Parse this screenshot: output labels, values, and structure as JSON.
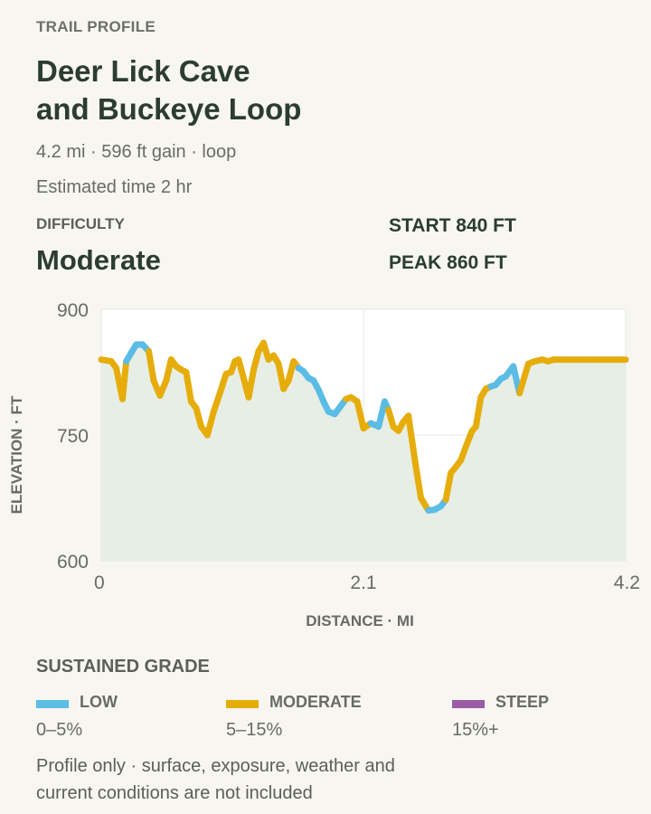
{
  "header": {
    "eyebrow": "TRAIL PROFILE",
    "title_line1": "Deer Lick Cave",
    "title_line2": "and Buckeye Loop",
    "meta": "4.2 mi · 596 ft gain · loop",
    "estimated_time": "Estimated time 2 hr"
  },
  "difficulty": {
    "label": "DIFFICULTY",
    "value": "Moderate"
  },
  "stats": {
    "start": "START 840 FT",
    "peak": "PEAK 860 FT"
  },
  "colors": {
    "low": "#5bbce6",
    "moderate": "#e6ad0a",
    "steep": "#9c5ba6",
    "area_fill": "#e7eee5",
    "plot_bg": "#ffffff",
    "grid": "#e6e6e2"
  },
  "chart_data": {
    "type": "area",
    "xlabel": "DISTANCE · MI",
    "ylabel": "ELEVATION · FT",
    "xlim": [
      0,
      4.2
    ],
    "ylim": [
      600,
      900
    ],
    "x_ticks": [
      0,
      2.1,
      4.2
    ],
    "x_tick_labels": [
      "0",
      "2.1",
      "4.2"
    ],
    "y_ticks": [
      600,
      750,
      900
    ],
    "y_tick_labels": [
      "600",
      "750",
      "900"
    ],
    "grid": true,
    "series": [
      {
        "x": [
          0,
          0.08,
          0.12,
          0.17,
          0.2,
          0.24,
          0.28,
          0.33,
          0.38,
          0.42,
          0.47,
          0.52,
          0.56,
          0.6,
          0.64,
          0.68,
          0.72,
          0.76,
          0.8,
          0.85,
          0.9,
          0.95,
          1.0,
          1.04,
          1.07,
          1.1,
          1.14,
          1.18,
          1.22,
          1.26,
          1.3,
          1.34,
          1.38,
          1.42,
          1.46,
          1.5,
          1.54,
          1.58,
          1.62,
          1.66,
          1.7,
          1.74,
          1.78,
          1.82,
          1.87,
          1.92,
          1.96,
          2.0,
          2.05,
          2.1,
          2.16,
          2.22,
          2.27,
          2.3,
          2.34,
          2.38,
          2.42,
          2.46,
          2.52,
          2.56,
          2.62,
          2.67,
          2.72,
          2.76,
          2.8,
          2.84,
          2.88,
          2.93,
          2.97,
          3.0,
          3.04,
          3.08,
          3.12,
          3.16,
          3.2,
          3.24,
          3.3,
          3.35,
          3.42,
          3.47,
          3.53,
          3.58,
          3.62,
          3.68,
          3.75,
          3.82,
          3.88,
          3.92,
          3.96,
          4.0,
          4.05,
          4.1,
          4.15,
          4.2
        ],
        "y": [
          840,
          838,
          830,
          793,
          838,
          848,
          858,
          858,
          850,
          815,
          797,
          815,
          840,
          832,
          828,
          825,
          790,
          782,
          760,
          750,
          778,
          800,
          823,
          825,
          838,
          840,
          818,
          795,
          828,
          850,
          860,
          840,
          845,
          835,
          805,
          815,
          838,
          830,
          826,
          818,
          815,
          804,
          790,
          778,
          775,
          785,
          793,
          795,
          790,
          758,
          764,
          760,
          790,
          780,
          760,
          755,
          766,
          773,
          712,
          675,
          660,
          661,
          665,
          673,
          705,
          712,
          720,
          740,
          755,
          760,
          795,
          805,
          808,
          810,
          817,
          820,
          832,
          800,
          835,
          838,
          840,
          838,
          840,
          840,
          840,
          840,
          840,
          840,
          840,
          840,
          840,
          840,
          840,
          840
        ],
        "grade": [
          "moderate",
          "moderate",
          "moderate",
          "moderate",
          "low",
          "low",
          "low",
          "low",
          "moderate",
          "moderate",
          "moderate",
          "moderate",
          "moderate",
          "moderate",
          "moderate",
          "moderate",
          "moderate",
          "moderate",
          "moderate",
          "moderate",
          "moderate",
          "moderate",
          "moderate",
          "moderate",
          "moderate",
          "moderate",
          "moderate",
          "moderate",
          "moderate",
          "moderate",
          "moderate",
          "moderate",
          "moderate",
          "moderate",
          "moderate",
          "moderate",
          "moderate",
          "low",
          "low",
          "low",
          "low",
          "low",
          "low",
          "low",
          "low",
          "low",
          "moderate",
          "moderate",
          "moderate",
          "moderate",
          "low",
          "low",
          "low",
          "moderate",
          "moderate",
          "moderate",
          "moderate",
          "moderate",
          "moderate",
          "moderate",
          "low",
          "low",
          "low",
          "moderate",
          "moderate",
          "moderate",
          "moderate",
          "moderate",
          "moderate",
          "moderate",
          "moderate",
          "moderate",
          "low",
          "low",
          "low",
          "low",
          "low",
          "moderate",
          "moderate",
          "moderate",
          "moderate",
          "moderate",
          "moderate",
          "moderate",
          "moderate",
          "moderate",
          "moderate",
          "moderate",
          "moderate",
          "moderate",
          "moderate",
          "moderate",
          "moderate",
          "moderate"
        ]
      }
    ]
  },
  "legend": {
    "title": "SUSTAINED GRADE",
    "items": [
      {
        "name": "LOW",
        "range": "0–5%"
      },
      {
        "name": "MODERATE",
        "range": "5–15%"
      },
      {
        "name": "STEEP",
        "range": "15%+"
      }
    ]
  },
  "footnote": "Profile only · surface, exposure, weather and current conditions are not included"
}
